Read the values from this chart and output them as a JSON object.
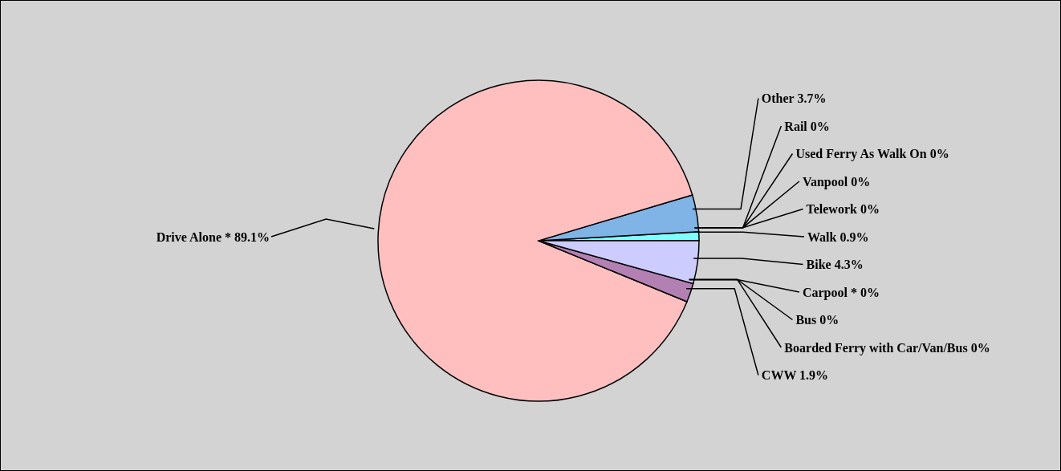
{
  "chart_data": {
    "type": "pie",
    "categories": [
      "Walk",
      "Telework",
      "Vanpool",
      "Used Ferry As Walk On",
      "Rail",
      "Other",
      "Drive Alone *",
      "CWW",
      "Boarded Ferry with Car/Van/Bus",
      "Bus",
      "Carpool *",
      "Bike"
    ],
    "values": [
      0.9,
      0,
      0,
      0,
      0,
      3.7,
      89.1,
      1.9,
      0,
      0,
      0,
      4.3
    ],
    "value_labels": [
      "0.9%",
      "0%",
      "0%",
      "0%",
      "0%",
      "3.7%",
      "89.1%",
      "1.9%",
      "0%",
      "0%",
      "0%",
      "4.3%"
    ],
    "colors": [
      "#80ffff",
      "#ffff80",
      "#ff8080",
      "#80ff80",
      "#ffcc80",
      "#80b3e6",
      "#ffbfbf",
      "#b380b3",
      "#cc99ff",
      "#99cc99",
      "#ffcccc",
      "#ccccff"
    ],
    "legend": false
  }
}
